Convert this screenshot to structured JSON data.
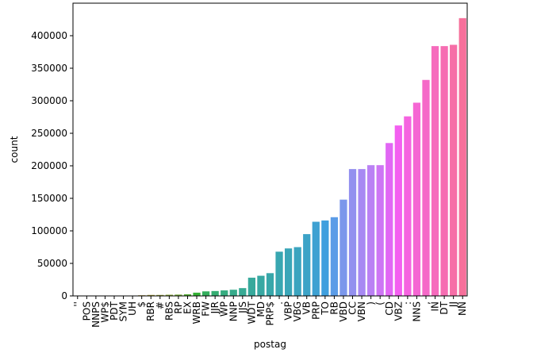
{
  "chart_data": {
    "type": "bar",
    "xlabel": "postag",
    "ylabel": "count",
    "ylim": [
      0,
      450000
    ],
    "yticks": [
      0,
      50000,
      100000,
      150000,
      200000,
      250000,
      300000,
      350000,
      400000
    ],
    "categories": [
      "''",
      "POS",
      "NNPS",
      "WP$",
      "PDT",
      "SYM",
      "UH",
      "$",
      "RBR",
      "#",
      "RBS",
      "RP",
      "EX",
      "WRB",
      "FW",
      "JJR",
      "WP",
      "NNP",
      "JJS",
      "WDT",
      "MD",
      "PRP$",
      ".",
      "VBP",
      "VBG",
      "VB",
      "PRP",
      "TO",
      "RB",
      "VBD",
      "CC",
      "VBN",
      ")",
      "(",
      "CD",
      "VBZ",
      ":",
      "NNS",
      ",",
      "IN",
      "DT",
      "JJ",
      "NN"
    ],
    "values": [
      0,
      0,
      0,
      0,
      0,
      0,
      0,
      1000,
      1500,
      1500,
      1800,
      2000,
      2500,
      5000,
      7000,
      7500,
      8500,
      9500,
      12000,
      28000,
      31000,
      35000,
      68000,
      73000,
      75000,
      95000,
      114000,
      116000,
      121000,
      148000,
      195000,
      195000,
      201000,
      201000,
      235000,
      262000,
      276000,
      297000,
      332000,
      384000,
      384000,
      386000,
      427000
    ],
    "colors": [
      "#f77189",
      "#f7735c",
      "#f57631",
      "#e4802f",
      "#d58832",
      "#c78f32",
      "#bb9432",
      "#af9832",
      "#a29c32",
      "#949f32",
      "#84a431",
      "#6fa831",
      "#51ab30",
      "#33b034",
      "#34ae5d",
      "#35ad72",
      "#36ac80",
      "#36ab8b",
      "#37aa94",
      "#37a99c",
      "#38a8a3",
      "#38a7aa",
      "#39a7b1",
      "#3aa6b8",
      "#3ba4bf",
      "#3ca3c7",
      "#3ea1d2",
      "#3f9fde",
      "#5b9ce7",
      "#7b97eb",
      "#9390ef",
      "#a789f3",
      "#ba81f4",
      "#cd76f4",
      "#e167f4",
      "#f35ff0",
      "#f563e0",
      "#f566d3",
      "#f569c8",
      "#f66bbd",
      "#f66db2",
      "#f66ea7",
      "#f6709b"
    ]
  }
}
